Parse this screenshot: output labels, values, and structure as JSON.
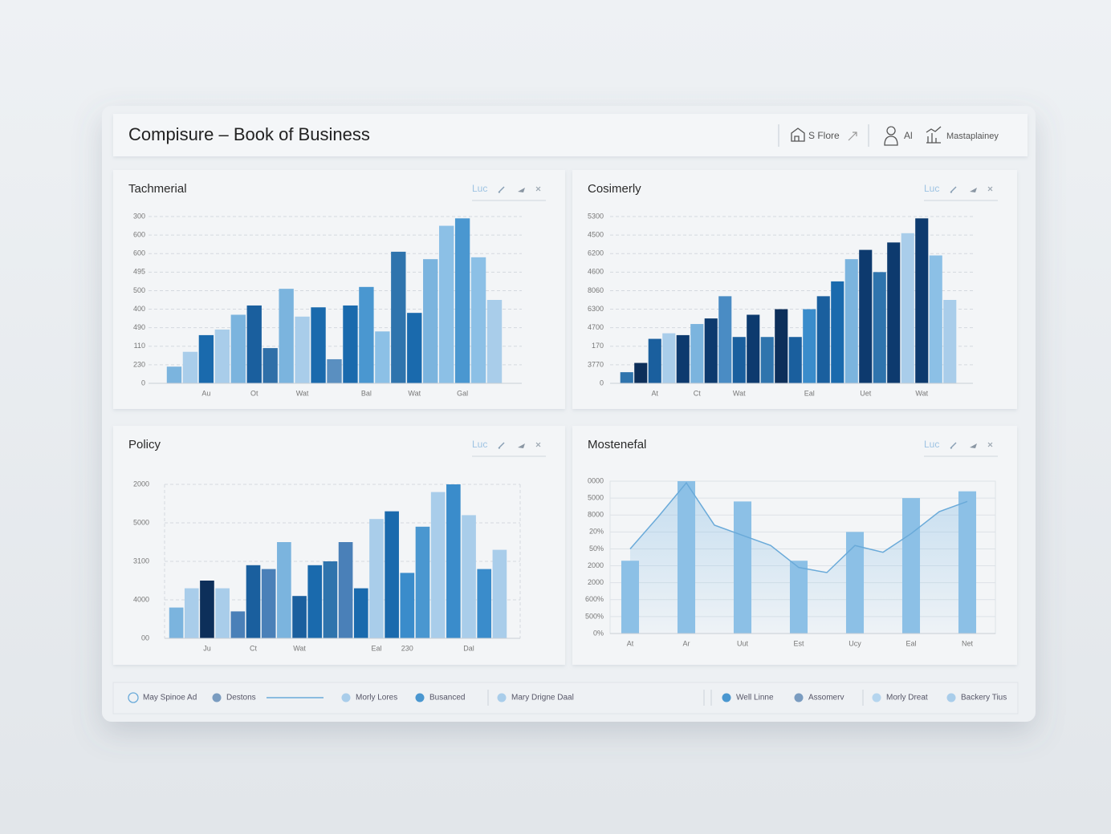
{
  "header": {
    "title": "Compisure – Book of Business",
    "actions": [
      "S Flore",
      "Al",
      "Mastaplainey"
    ]
  },
  "chart_data": [
    {
      "type": "bar",
      "title": "Tachmerial",
      "control": "Luc",
      "categories": [
        null,
        null,
        "Au",
        null,
        null,
        "Ot",
        null,
        null,
        "Wat",
        null,
        null,
        null,
        "Bal",
        null,
        null,
        "Wat",
        null,
        null,
        "Gal",
        null,
        null
      ],
      "values": [
        0.9,
        1.7,
        2.6,
        2.9,
        3.7,
        4.2,
        1.9,
        5.1,
        3.6,
        4.1,
        1.3,
        4.2,
        5.2,
        2.8,
        7.1,
        3.8,
        6.7,
        8.5,
        8.9,
        6.8,
        4.5
      ],
      "colors": [
        "#7bb4de",
        "#a9cdea",
        "#1a6aad",
        "#a9cdea",
        "#7bb4de",
        "#1a5f9e",
        "#2f6fa8",
        "#7bb4de",
        "#a9cdea",
        "#1a6aad",
        "#5a8fc0",
        "#1a6aad",
        "#4a97d0",
        "#8cc0e6",
        "#2f74ad",
        "#1a6aad",
        "#7bb4de",
        "#8cc0e6",
        "#4a97d0",
        "#8cc0e6",
        "#a9cdea"
      ],
      "ylim": [
        0,
        9
      ],
      "yticks": [
        0,
        {
          "value": 1,
          "label": "230"
        },
        {
          "value": 2,
          "label": "110"
        },
        {
          "value": 3,
          "label": "490"
        },
        {
          "value": 4,
          "label": "400"
        },
        {
          "value": 5,
          "label": "500"
        },
        {
          "value": 6,
          "label": "495"
        },
        {
          "value": 7,
          "label": "600"
        },
        {
          "value": 8,
          "label": "600"
        },
        {
          "value": 9,
          "label": "300"
        }
      ],
      "grid": true
    },
    {
      "type": "bar",
      "title": "Cosimerly",
      "control": "Luc",
      "categories": [
        null,
        null,
        "At",
        null,
        null,
        "Ct",
        null,
        null,
        "Wat",
        null,
        null,
        null,
        null,
        "Eal",
        null,
        null,
        null,
        "Uet",
        null,
        null,
        null,
        "Wat",
        null,
        null
      ],
      "values": [
        0.6,
        1.1,
        2.4,
        2.7,
        2.6,
        3.2,
        3.5,
        4.7,
        2.5,
        3.7,
        2.5,
        4.0,
        2.5,
        4.0,
        4.7,
        5.5,
        6.7,
        7.2,
        6.0,
        7.6,
        8.1,
        8.9,
        6.9,
        4.5
      ],
      "colors": [
        "#2f74ad",
        "#0d2f5a",
        "#1a5f9e",
        "#a9cdea",
        "#0d3a6e",
        "#7bb4de",
        "#0d3a6e",
        "#4a8cc4",
        "#1a5f9e",
        "#0d3a6e",
        "#2f74ad",
        "#0d2f5a",
        "#1a5f9e",
        "#3a8ccb",
        "#1a5f9e",
        "#1a6aad",
        "#7bb4de",
        "#0d3a6e",
        "#2f74ad",
        "#0d3a6e",
        "#a9cdea",
        "#0d3a6e",
        "#8cc0e6",
        "#a9cdea"
      ],
      "ylim": [
        0,
        9
      ],
      "yticks": [
        0,
        {
          "value": 1,
          "label": "3770"
        },
        {
          "value": 2,
          "label": "170"
        },
        {
          "value": 3,
          "label": "4700"
        },
        {
          "value": 4,
          "label": "6300"
        },
        {
          "value": 5,
          "label": "8060"
        },
        {
          "value": 6,
          "label": "4600"
        },
        {
          "value": 7,
          "label": "6200"
        },
        {
          "value": 8,
          "label": "4500"
        },
        {
          "value": 9,
          "label": "5300"
        }
      ],
      "grid": true
    },
    {
      "type": "bar",
      "title": "Policy",
      "control": "Luc",
      "categories": [
        null,
        null,
        "Ju",
        null,
        null,
        "Ct",
        null,
        null,
        "Wat",
        null,
        null,
        null,
        null,
        "Eal",
        null,
        "230",
        null,
        null,
        null,
        "Dal",
        null,
        null
      ],
      "values": [
        0.8,
        1.3,
        1.5,
        1.3,
        0.7,
        1.9,
        1.8,
        2.5,
        1.1,
        1.9,
        2.0,
        2.5,
        1.3,
        3.1,
        3.3,
        1.7,
        2.9,
        3.8,
        4.0,
        3.2,
        1.8,
        2.3
      ],
      "colors": [
        "#7bb4de",
        "#a9cdea",
        "#0d2f5a",
        "#a9cdea",
        "#4a80b8",
        "#1a5f9e",
        "#4a80b8",
        "#7bb4de",
        "#1a5f9e",
        "#1a6aad",
        "#2f74ad",
        "#4a80b8",
        "#1a6aad",
        "#a9cdea",
        "#1a6aad",
        "#3a8ccb",
        "#4a97d0",
        "#a9cdea",
        "#3a8ccb",
        "#a9cdea",
        "#3a8ccb",
        "#a9cdea"
      ],
      "ylim": [
        0,
        4
      ],
      "yticks": [
        {
          "value": 0,
          "label": "00"
        },
        {
          "value": 1,
          "label": "4000"
        },
        {
          "value": 2,
          "label": "3100"
        },
        {
          "value": 3,
          "label": "5000"
        },
        {
          "value": 4,
          "label": "2000"
        }
      ],
      "grid": true
    },
    {
      "type": "combo",
      "title": "Mostenefal",
      "control": "Luc",
      "categories": [
        "At",
        null,
        "Ar",
        null,
        "Uut",
        null,
        "Est",
        null,
        "Ucy",
        null,
        "Eal",
        null,
        "Net"
      ],
      "series": [
        {
          "type": "bar",
          "color": "#8cc0e6",
          "values": [
            4.3,
            null,
            9,
            null,
            7.8,
            null,
            4.3,
            null,
            6.0,
            null,
            8.0,
            null,
            8.4
          ]
        },
        {
          "type": "line",
          "color": "#6aaad9",
          "values": [
            5.0,
            6.9,
            8.9,
            6.4,
            5.8,
            5.2,
            3.9,
            3.6,
            5.2,
            4.8,
            5.9,
            7.2,
            7.8
          ]
        }
      ],
      "ylim": [
        0,
        9
      ],
      "yticks": [
        {
          "value": 0,
          "label": "0%"
        },
        {
          "value": 1,
          "label": "500%"
        },
        {
          "value": 2,
          "label": "600%"
        },
        {
          "value": 3,
          "label": "2000"
        },
        {
          "value": 4,
          "label": "2000"
        },
        {
          "value": 5,
          "label": "50%"
        },
        {
          "value": 6,
          "label": "20%"
        },
        {
          "value": 7,
          "label": "8000"
        },
        {
          "value": 8,
          "label": "5000"
        },
        {
          "value": 9,
          "label": "0000"
        }
      ],
      "grid": true
    }
  ],
  "legend": [
    {
      "label": "May Spinoe Ad",
      "color": "#6aaad9",
      "style": "ring"
    },
    {
      "label": "Destons",
      "color": "#7a9cc0",
      "style": "dot"
    },
    {
      "label": "Morly Lores",
      "color": "#a9cdea",
      "style": "dot"
    },
    {
      "label": "Busanced",
      "color": "#4a97d0",
      "style": "dot"
    },
    {
      "label": "Mary Drigne Daal",
      "color": "#a9cdea",
      "style": "dot"
    },
    {
      "label": "Well Linne",
      "color": "#4a97d0",
      "style": "dot"
    },
    {
      "label": "Assomerv",
      "color": "#7a9cc0",
      "style": "dot"
    },
    {
      "label": "Morly Dreat",
      "color": "#b5d5ee",
      "style": "dot"
    },
    {
      "label": "Backery Tius",
      "color": "#a9cdea",
      "style": "dot"
    }
  ]
}
